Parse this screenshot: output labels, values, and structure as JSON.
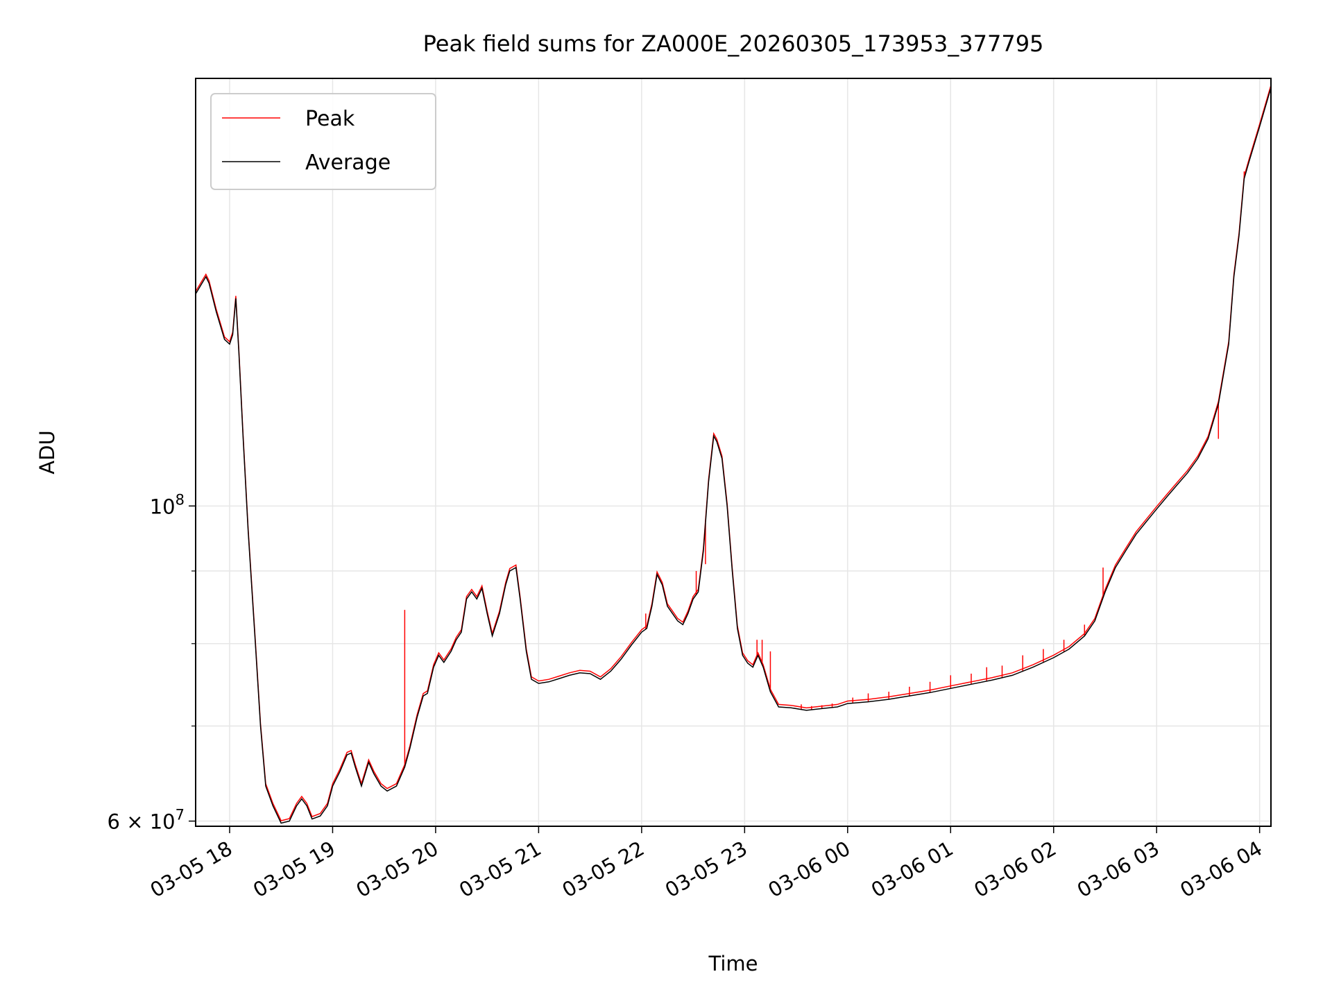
{
  "chart_data": {
    "type": "line",
    "title": "Peak field sums for ZA000E_20260305_173953_377795",
    "xlabel": "Time",
    "ylabel": "ADU",
    "yscale": "log",
    "ylim": [
      59500000,
      200000000
    ],
    "xlim_hours": [
      17.67,
      28.11
    ],
    "grid": true,
    "legend_position": "upper-left",
    "x_ticks": [
      {
        "hour": 18,
        "label": "03-05 18"
      },
      {
        "hour": 19,
        "label": "03-05 19"
      },
      {
        "hour": 20,
        "label": "03-05 20"
      },
      {
        "hour": 21,
        "label": "03-05 21"
      },
      {
        "hour": 22,
        "label": "03-05 22"
      },
      {
        "hour": 23,
        "label": "03-05 23"
      },
      {
        "hour": 24,
        "label": "03-06 00"
      },
      {
        "hour": 25,
        "label": "03-06 01"
      },
      {
        "hour": 26,
        "label": "03-06 02"
      },
      {
        "hour": 27,
        "label": "03-06 03"
      },
      {
        "hour": 28,
        "label": "03-06 04"
      }
    ],
    "y_major_ticks": [
      {
        "value": 60000000,
        "mantissa": "6",
        "base": "10",
        "exp": "7"
      },
      {
        "value": 100000000,
        "mantissa": "",
        "base": "10",
        "exp": "8"
      }
    ],
    "y_minor_ticks": [
      70000000,
      80000000,
      90000000
    ],
    "colors": {
      "peak": "#ff0000",
      "average": "#000000",
      "grid": "#e6e6e6"
    },
    "series": [
      {
        "name": "Peak",
        "key": "peak",
        "spikes": [
          [
            19.7,
            84500000
          ],
          [
            22.04,
            84000000
          ],
          [
            22.53,
            90000000
          ],
          [
            22.62,
            91000000
          ],
          [
            23.12,
            80500000
          ],
          [
            23.17,
            80500000
          ],
          [
            23.25,
            79000000
          ],
          [
            23.55,
            72500000
          ],
          [
            23.65,
            72300000
          ],
          [
            23.75,
            72400000
          ],
          [
            23.85,
            72600000
          ],
          [
            24.05,
            73300000
          ],
          [
            24.2,
            73800000
          ],
          [
            24.4,
            74000000
          ],
          [
            24.6,
            74600000
          ],
          [
            24.8,
            75200000
          ],
          [
            25.0,
            76000000
          ],
          [
            25.2,
            76200000
          ],
          [
            25.35,
            77000000
          ],
          [
            25.5,
            77200000
          ],
          [
            25.7,
            78500000
          ],
          [
            25.9,
            79300000
          ],
          [
            26.1,
            80500000
          ],
          [
            26.3,
            82500000
          ],
          [
            26.48,
            90500000
          ],
          [
            27.6,
            111500000
          ],
          [
            27.85,
            172000000
          ]
        ]
      },
      {
        "name": "Average",
        "key": "average",
        "points": [
          [
            17.67,
            141000000
          ],
          [
            17.72,
            143000000
          ],
          [
            17.77,
            145000000
          ],
          [
            17.8,
            143500000
          ],
          [
            17.87,
            137000000
          ],
          [
            17.95,
            131000000
          ],
          [
            18.0,
            130000000
          ],
          [
            18.03,
            132000000
          ],
          [
            18.06,
            140000000
          ],
          [
            18.09,
            128000000
          ],
          [
            18.13,
            112000000
          ],
          [
            18.18,
            96000000
          ],
          [
            18.25,
            80000000
          ],
          [
            18.3,
            70000000
          ],
          [
            18.35,
            63500000
          ],
          [
            18.42,
            61500000
          ],
          [
            18.5,
            59800000
          ],
          [
            18.58,
            60000000
          ],
          [
            18.65,
            61500000
          ],
          [
            18.7,
            62200000
          ],
          [
            18.75,
            61500000
          ],
          [
            18.8,
            60200000
          ],
          [
            18.88,
            60500000
          ],
          [
            18.95,
            61500000
          ],
          [
            19.0,
            63500000
          ],
          [
            19.07,
            65000000
          ],
          [
            19.14,
            66800000
          ],
          [
            19.18,
            67000000
          ],
          [
            19.22,
            65500000
          ],
          [
            19.28,
            63500000
          ],
          [
            19.35,
            66000000
          ],
          [
            19.4,
            64800000
          ],
          [
            19.47,
            63500000
          ],
          [
            19.53,
            63000000
          ],
          [
            19.62,
            63500000
          ],
          [
            19.7,
            65500000
          ],
          [
            19.75,
            67500000
          ],
          [
            19.82,
            71000000
          ],
          [
            19.88,
            73500000
          ],
          [
            19.92,
            73800000
          ],
          [
            19.98,
            77000000
          ],
          [
            20.03,
            78500000
          ],
          [
            20.08,
            77600000
          ],
          [
            20.15,
            79000000
          ],
          [
            20.2,
            80500000
          ],
          [
            20.25,
            81500000
          ],
          [
            20.3,
            86000000
          ],
          [
            20.35,
            87000000
          ],
          [
            20.4,
            86000000
          ],
          [
            20.45,
            87500000
          ],
          [
            20.5,
            84000000
          ],
          [
            20.55,
            81000000
          ],
          [
            20.62,
            84000000
          ],
          [
            20.68,
            88000000
          ],
          [
            20.72,
            90000000
          ],
          [
            20.78,
            90500000
          ],
          [
            20.82,
            86000000
          ],
          [
            20.88,
            79000000
          ],
          [
            20.93,
            75500000
          ],
          [
            21.0,
            75000000
          ],
          [
            21.1,
            75200000
          ],
          [
            21.2,
            75600000
          ],
          [
            21.3,
            76000000
          ],
          [
            21.4,
            76300000
          ],
          [
            21.5,
            76200000
          ],
          [
            21.6,
            75500000
          ],
          [
            21.7,
            76500000
          ],
          [
            21.8,
            78000000
          ],
          [
            21.9,
            79800000
          ],
          [
            22.0,
            81500000
          ],
          [
            22.05,
            82000000
          ],
          [
            22.1,
            85000000
          ],
          [
            22.15,
            89500000
          ],
          [
            22.2,
            88000000
          ],
          [
            22.25,
            85000000
          ],
          [
            22.3,
            84000000
          ],
          [
            22.35,
            83000000
          ],
          [
            22.4,
            82500000
          ],
          [
            22.45,
            84000000
          ],
          [
            22.5,
            86000000
          ],
          [
            22.55,
            87000000
          ],
          [
            22.6,
            93000000
          ],
          [
            22.65,
            104000000
          ],
          [
            22.7,
            112000000
          ],
          [
            22.73,
            111000000
          ],
          [
            22.78,
            108000000
          ],
          [
            22.83,
            100000000
          ],
          [
            22.88,
            90000000
          ],
          [
            22.93,
            82000000
          ],
          [
            22.98,
            78500000
          ],
          [
            23.03,
            77500000
          ],
          [
            23.08,
            77000000
          ],
          [
            23.13,
            78500000
          ],
          [
            23.18,
            77000000
          ],
          [
            23.25,
            74000000
          ],
          [
            23.33,
            72200000
          ],
          [
            23.45,
            72100000
          ],
          [
            23.6,
            71800000
          ],
          [
            23.75,
            72000000
          ],
          [
            23.9,
            72200000
          ],
          [
            24.0,
            72600000
          ],
          [
            24.2,
            72800000
          ],
          [
            24.4,
            73100000
          ],
          [
            24.6,
            73500000
          ],
          [
            24.8,
            73900000
          ],
          [
            25.0,
            74400000
          ],
          [
            25.2,
            74900000
          ],
          [
            25.4,
            75400000
          ],
          [
            25.6,
            76000000
          ],
          [
            25.8,
            77000000
          ],
          [
            26.0,
            78200000
          ],
          [
            26.15,
            79300000
          ],
          [
            26.3,
            81000000
          ],
          [
            26.4,
            83000000
          ],
          [
            26.5,
            87000000
          ],
          [
            26.6,
            90500000
          ],
          [
            26.7,
            93000000
          ],
          [
            26.8,
            95500000
          ],
          [
            26.9,
            97500000
          ],
          [
            27.0,
            99500000
          ],
          [
            27.1,
            101500000
          ],
          [
            27.2,
            103500000
          ],
          [
            27.3,
            105500000
          ],
          [
            27.4,
            108000000
          ],
          [
            27.5,
            111500000
          ],
          [
            27.6,
            118000000
          ],
          [
            27.7,
            130000000
          ],
          [
            27.75,
            145000000
          ],
          [
            27.8,
            155000000
          ],
          [
            27.85,
            170000000
          ],
          [
            27.9,
            175000000
          ],
          [
            28.0,
            185000000
          ],
          [
            28.11,
            197000000
          ]
        ]
      }
    ]
  }
}
